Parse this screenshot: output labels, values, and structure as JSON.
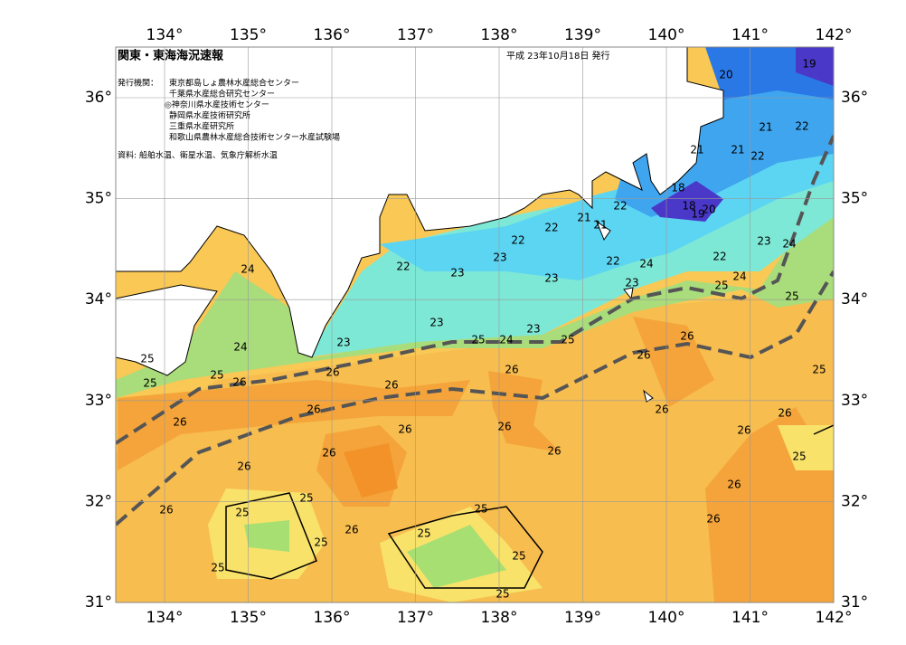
{
  "header": {
    "title": "関東・東海海況速報",
    "date": "平成 23年10月18日 発行",
    "publisher_label": "発行機関：",
    "publishers": [
      "東京都島しょ農林水産総合センター",
      "千葉県水産総合研究センター",
      "◎神奈川県水産技術センター",
      "静岡県水産技術研究所",
      "三重県水産研究所",
      "和歌山県農林水産総合技術センター水産試験場"
    ],
    "source": "資料: 船舶水温、衛星水温、気象庁解析水温"
  },
  "axes": {
    "longitudes": [
      "134°",
      "135°",
      "136°",
      "137°",
      "138°",
      "139°",
      "140°",
      "141°",
      "142°"
    ],
    "latitudes": [
      "36°",
      "35°",
      "34°",
      "33°",
      "32°",
      "31°"
    ]
  },
  "contour_labels": [
    20,
    19,
    21,
    22,
    21,
    21,
    22,
    18,
    18,
    19,
    20,
    21,
    22,
    21,
    22,
    22,
    23,
    24,
    22,
    24,
    22,
    24,
    25,
    22,
    23,
    23,
    23,
    23,
    25,
    24,
    24,
    23,
    23,
    23,
    25,
    24,
    25,
    26,
    26,
    25,
    25,
    25,
    25,
    26,
    26,
    26,
    26,
    26,
    26,
    26,
    26,
    26,
    26,
    26,
    26,
    26,
    25,
    26,
    25,
    26,
    26,
    25,
    25,
    26,
    26,
    25,
    25,
    25,
    25,
    25
  ]
}
